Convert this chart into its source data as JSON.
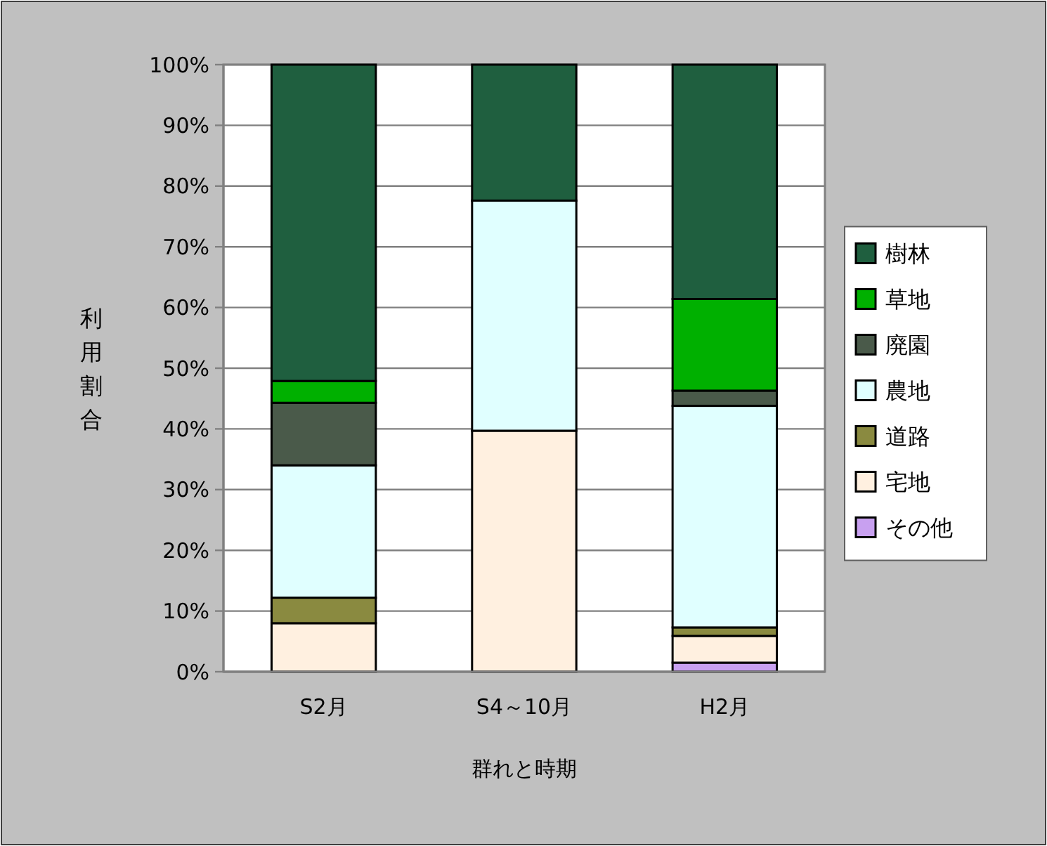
{
  "chart_data": {
    "type": "bar",
    "stacked": true,
    "xlabel": "群れと時期",
    "ylabel": "利用割合",
    "categories": [
      "S2月",
      "S4～10月",
      "H2月"
    ],
    "series": [
      {
        "name": "その他",
        "color": "#c8a0f0",
        "values": [
          0,
          0,
          1.5
        ]
      },
      {
        "name": "宅地",
        "color": "#fff0e0",
        "values": [
          8,
          39.7,
          4.4
        ]
      },
      {
        "name": "道路",
        "color": "#8a8a40",
        "values": [
          4.2,
          0,
          1.4
        ]
      },
      {
        "name": "農地",
        "color": "#e0ffff",
        "values": [
          21.8,
          37.9,
          36.5
        ]
      },
      {
        "name": "廃園",
        "color": "#4a5a4a",
        "values": [
          10.3,
          0,
          2.5
        ]
      },
      {
        "name": "草地",
        "color": "#00b000",
        "values": [
          3.6,
          0,
          15.1
        ]
      },
      {
        "name": "樹林",
        "color": "#1f5f3f",
        "values": [
          52.1,
          22.4,
          38.6
        ]
      }
    ],
    "ylim": [
      0,
      100
    ],
    "yticks": [
      {
        "value": 0,
        "label": "0%"
      },
      {
        "value": 10,
        "label": "10%"
      },
      {
        "value": 20,
        "label": "20%"
      },
      {
        "value": 30,
        "label": "30%"
      },
      {
        "value": 40,
        "label": "40%"
      },
      {
        "value": 50,
        "label": "50%"
      },
      {
        "value": 60,
        "label": "60%"
      },
      {
        "value": 70,
        "label": "70%"
      },
      {
        "value": 80,
        "label": "80%"
      },
      {
        "value": 90,
        "label": "90%"
      },
      {
        "value": 100,
        "label": "100%"
      }
    ],
    "grid": "y",
    "legend": "right"
  }
}
